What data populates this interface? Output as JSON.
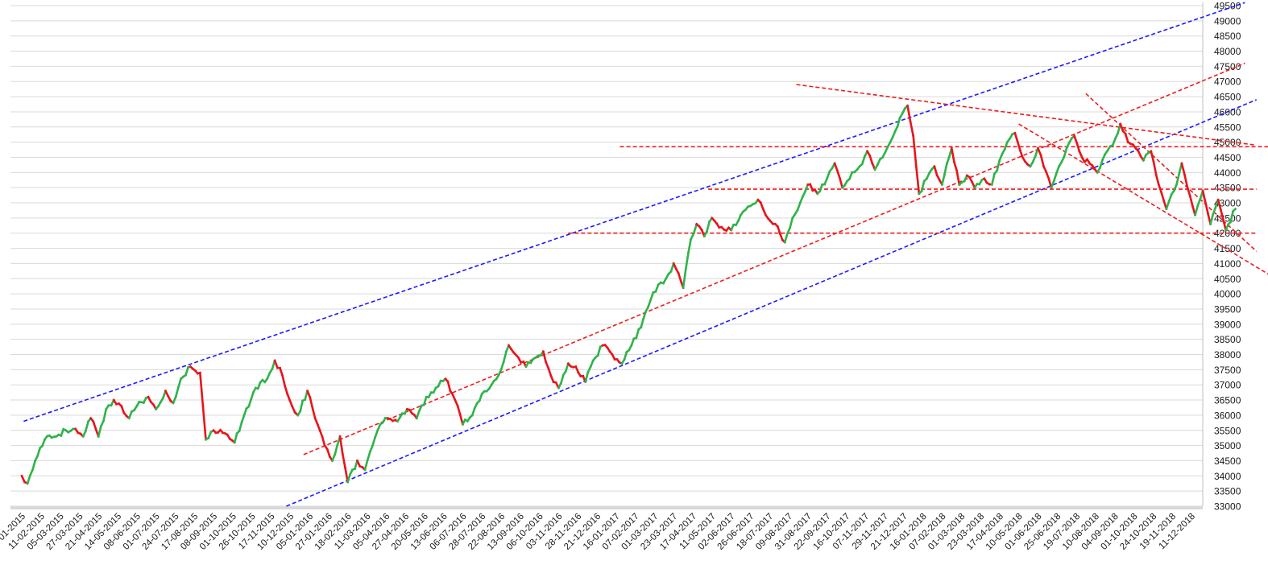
{
  "chart_data": {
    "type": "candlestick",
    "title": "",
    "xlabel": "",
    "ylabel": "",
    "ylim": [
      33000,
      49500
    ],
    "y_tick_step": 500,
    "y_axis_side": "right",
    "grid": {
      "horizontal": true,
      "vertical": false
    },
    "x_labels": [
      "01-2015",
      "11-02-2015",
      "05-03-2015",
      "27-03-2015",
      "21-04-2015",
      "14-05-2015",
      "08-06-2015",
      "01-07-2015",
      "24-07-2015",
      "17-08-2015",
      "08-09-2015",
      "01-10-2015",
      "26-10-2015",
      "17-11-2015",
      "10-12-2015",
      "05-01-2016",
      "27-01-2016",
      "18-02-2016",
      "11-03-2016",
      "05-04-2016",
      "27-04-2016",
      "20-05-2016",
      "13-06-2016",
      "06-07-2016",
      "28-07-2016",
      "22-08-2016",
      "13-09-2016",
      "06-10-2016",
      "03-11-2016",
      "28-11-2016",
      "21-12-2016",
      "16-01-2017",
      "07-02-2017",
      "01-03-2017",
      "23-03-2017",
      "17-04-2017",
      "11-05-2017",
      "02-06-2017",
      "26-06-2017",
      "18-07-2017",
      "09-08-2017",
      "31-08-2017",
      "22-09-2017",
      "16-10-2017",
      "07-11-2017",
      "29-11-2017",
      "21-12-2017",
      "16-01-2018",
      "07-02-2018",
      "01-03-2018",
      "23-03-2018",
      "17-04-2018",
      "10-05-2018",
      "01-06-2018",
      "25-06-2018",
      "19-07-2018",
      "10-08-2018",
      "04-09-2018",
      "01-10-2018",
      "24-10-2018",
      "19-11-2018",
      "11-12-2018"
    ],
    "price_path": [
      [
        0,
        34000
      ],
      [
        0.3,
        33750
      ],
      [
        0.7,
        34500
      ],
      [
        1.2,
        35200
      ],
      [
        1.8,
        35300
      ],
      [
        2.3,
        35500
      ],
      [
        2.8,
        35550
      ],
      [
        3.2,
        35300
      ],
      [
        3.6,
        35900
      ],
      [
        4.0,
        35300
      ],
      [
        4.4,
        36200
      ],
      [
        4.8,
        36500
      ],
      [
        5.2,
        36300
      ],
      [
        5.6,
        35900
      ],
      [
        6.0,
        36300
      ],
      [
        6.6,
        36600
      ],
      [
        7.0,
        36200
      ],
      [
        7.5,
        36800
      ],
      [
        7.9,
        36400
      ],
      [
        8.3,
        37200
      ],
      [
        8.8,
        37600
      ],
      [
        9.3,
        37400
      ],
      [
        9.6,
        35200
      ],
      [
        10.0,
        35500
      ],
      [
        10.6,
        35400
      ],
      [
        11.1,
        35100
      ],
      [
        11.6,
        36000
      ],
      [
        12.2,
        36900
      ],
      [
        12.8,
        37200
      ],
      [
        13.2,
        37800
      ],
      [
        13.6,
        37300
      ],
      [
        14.1,
        36300
      ],
      [
        14.4,
        36000
      ],
      [
        14.9,
        36800
      ],
      [
        15.3,
        35900
      ],
      [
        15.8,
        35000
      ],
      [
        16.2,
        34500
      ],
      [
        16.6,
        35300
      ],
      [
        17.0,
        33800
      ],
      [
        17.5,
        34500
      ],
      [
        17.9,
        34200
      ],
      [
        18.3,
        35000
      ],
      [
        18.7,
        35700
      ],
      [
        19.1,
        35900
      ],
      [
        19.6,
        35800
      ],
      [
        20.1,
        36200
      ],
      [
        20.6,
        35900
      ],
      [
        21.1,
        36600
      ],
      [
        21.6,
        36900
      ],
      [
        22.1,
        37200
      ],
      [
        22.6,
        36500
      ],
      [
        23.0,
        35700
      ],
      [
        23.5,
        36000
      ],
      [
        24.0,
        36700
      ],
      [
        24.5,
        37000
      ],
      [
        25.0,
        37500
      ],
      [
        25.4,
        38300
      ],
      [
        25.9,
        37900
      ],
      [
        26.3,
        37600
      ],
      [
        26.8,
        37900
      ],
      [
        27.2,
        38100
      ],
      [
        27.6,
        37300
      ],
      [
        28.0,
        36900
      ],
      [
        28.5,
        37700
      ],
      [
        28.9,
        37600
      ],
      [
        29.4,
        37100
      ],
      [
        29.8,
        37800
      ],
      [
        30.3,
        38300
      ],
      [
        30.8,
        38000
      ],
      [
        31.3,
        37700
      ],
      [
        31.8,
        38300
      ],
      [
        32.3,
        38900
      ],
      [
        32.8,
        39800
      ],
      [
        33.2,
        40300
      ],
      [
        33.6,
        40500
      ],
      [
        34.0,
        41000
      ],
      [
        34.5,
        40200
      ],
      [
        34.9,
        41800
      ],
      [
        35.2,
        42300
      ],
      [
        35.6,
        41900
      ],
      [
        36.0,
        42500
      ],
      [
        36.5,
        42200
      ],
      [
        37.0,
        42100
      ],
      [
        37.5,
        42600
      ],
      [
        38.0,
        42900
      ],
      [
        38.4,
        43100
      ],
      [
        38.8,
        42600
      ],
      [
        39.3,
        42300
      ],
      [
        39.8,
        41700
      ],
      [
        40.2,
        42500
      ],
      [
        40.6,
        43000
      ],
      [
        41.0,
        43600
      ],
      [
        41.5,
        43300
      ],
      [
        42.0,
        43800
      ],
      [
        42.4,
        44300
      ],
      [
        42.8,
        43500
      ],
      [
        43.3,
        44000
      ],
      [
        43.7,
        44200
      ],
      [
        44.1,
        44700
      ],
      [
        44.5,
        44100
      ],
      [
        44.9,
        44500
      ],
      [
        45.3,
        45000
      ],
      [
        45.8,
        45800
      ],
      [
        46.2,
        46200
      ],
      [
        46.5,
        45200
      ],
      [
        46.8,
        43300
      ],
      [
        47.2,
        43800
      ],
      [
        47.6,
        44200
      ],
      [
        48.0,
        43600
      ],
      [
        48.5,
        44800
      ],
      [
        48.9,
        43600
      ],
      [
        49.3,
        43900
      ],
      [
        49.7,
        43500
      ],
      [
        50.2,
        43800
      ],
      [
        50.6,
        43600
      ],
      [
        51.0,
        44400
      ],
      [
        51.4,
        45000
      ],
      [
        51.8,
        45300
      ],
      [
        52.2,
        44500
      ],
      [
        52.6,
        44200
      ],
      [
        53.0,
        44800
      ],
      [
        53.3,
        44200
      ],
      [
        53.7,
        43500
      ],
      [
        54.1,
        44200
      ],
      [
        54.5,
        44800
      ],
      [
        54.9,
        45200
      ],
      [
        55.3,
        44500
      ],
      [
        55.7,
        44300
      ],
      [
        56.1,
        44000
      ],
      [
        56.5,
        44600
      ],
      [
        56.9,
        44900
      ],
      [
        57.3,
        45600
      ],
      [
        57.7,
        45000
      ],
      [
        58.1,
        44800
      ],
      [
        58.5,
        44400
      ],
      [
        58.9,
        44700
      ],
      [
        59.3,
        43600
      ],
      [
        59.7,
        42800
      ],
      [
        60.1,
        43400
      ],
      [
        60.5,
        44300
      ],
      [
        60.8,
        43500
      ],
      [
        61.2,
        42600
      ],
      [
        61.6,
        43400
      ],
      [
        62.0,
        42300
      ],
      [
        62.4,
        43100
      ],
      [
        62.8,
        42100
      ],
      [
        63.3,
        42800
      ]
    ],
    "trendlines": [
      {
        "color": "#1a1aff",
        "from": [
          0.1,
          35800
        ],
        "to": [
          63.8,
          49600
        ]
      },
      {
        "color": "#1a1aff",
        "from": [
          13.8,
          33000
        ],
        "to": [
          64.4,
          46400
        ]
      },
      {
        "color": "#ee1c1c",
        "from": [
          14.7,
          34700
        ],
        "to": [
          63.8,
          47600
        ]
      },
      {
        "color": "#ee1c1c",
        "from": [
          40.4,
          46900
        ],
        "to": [
          64.4,
          44900
        ]
      },
      {
        "color": "#ee1c1c",
        "from": [
          52.0,
          45600
        ],
        "to": [
          66.2,
          40200
        ]
      },
      {
        "color": "#ee1c1c",
        "from": [
          55.5,
          46600
        ],
        "to": [
          64.4,
          41400
        ]
      },
      {
        "color": "#ee1c1c",
        "from": [
          31.2,
          44850
        ],
        "to": [
          66.2,
          44850
        ]
      },
      {
        "color": "#ee1c1c",
        "from": [
          35.8,
          43450
        ],
        "to": [
          64.4,
          43450
        ]
      },
      {
        "color": "#ee1c1c",
        "from": [
          28.5,
          42000
        ],
        "to": [
          64.4,
          42000
        ]
      }
    ]
  }
}
